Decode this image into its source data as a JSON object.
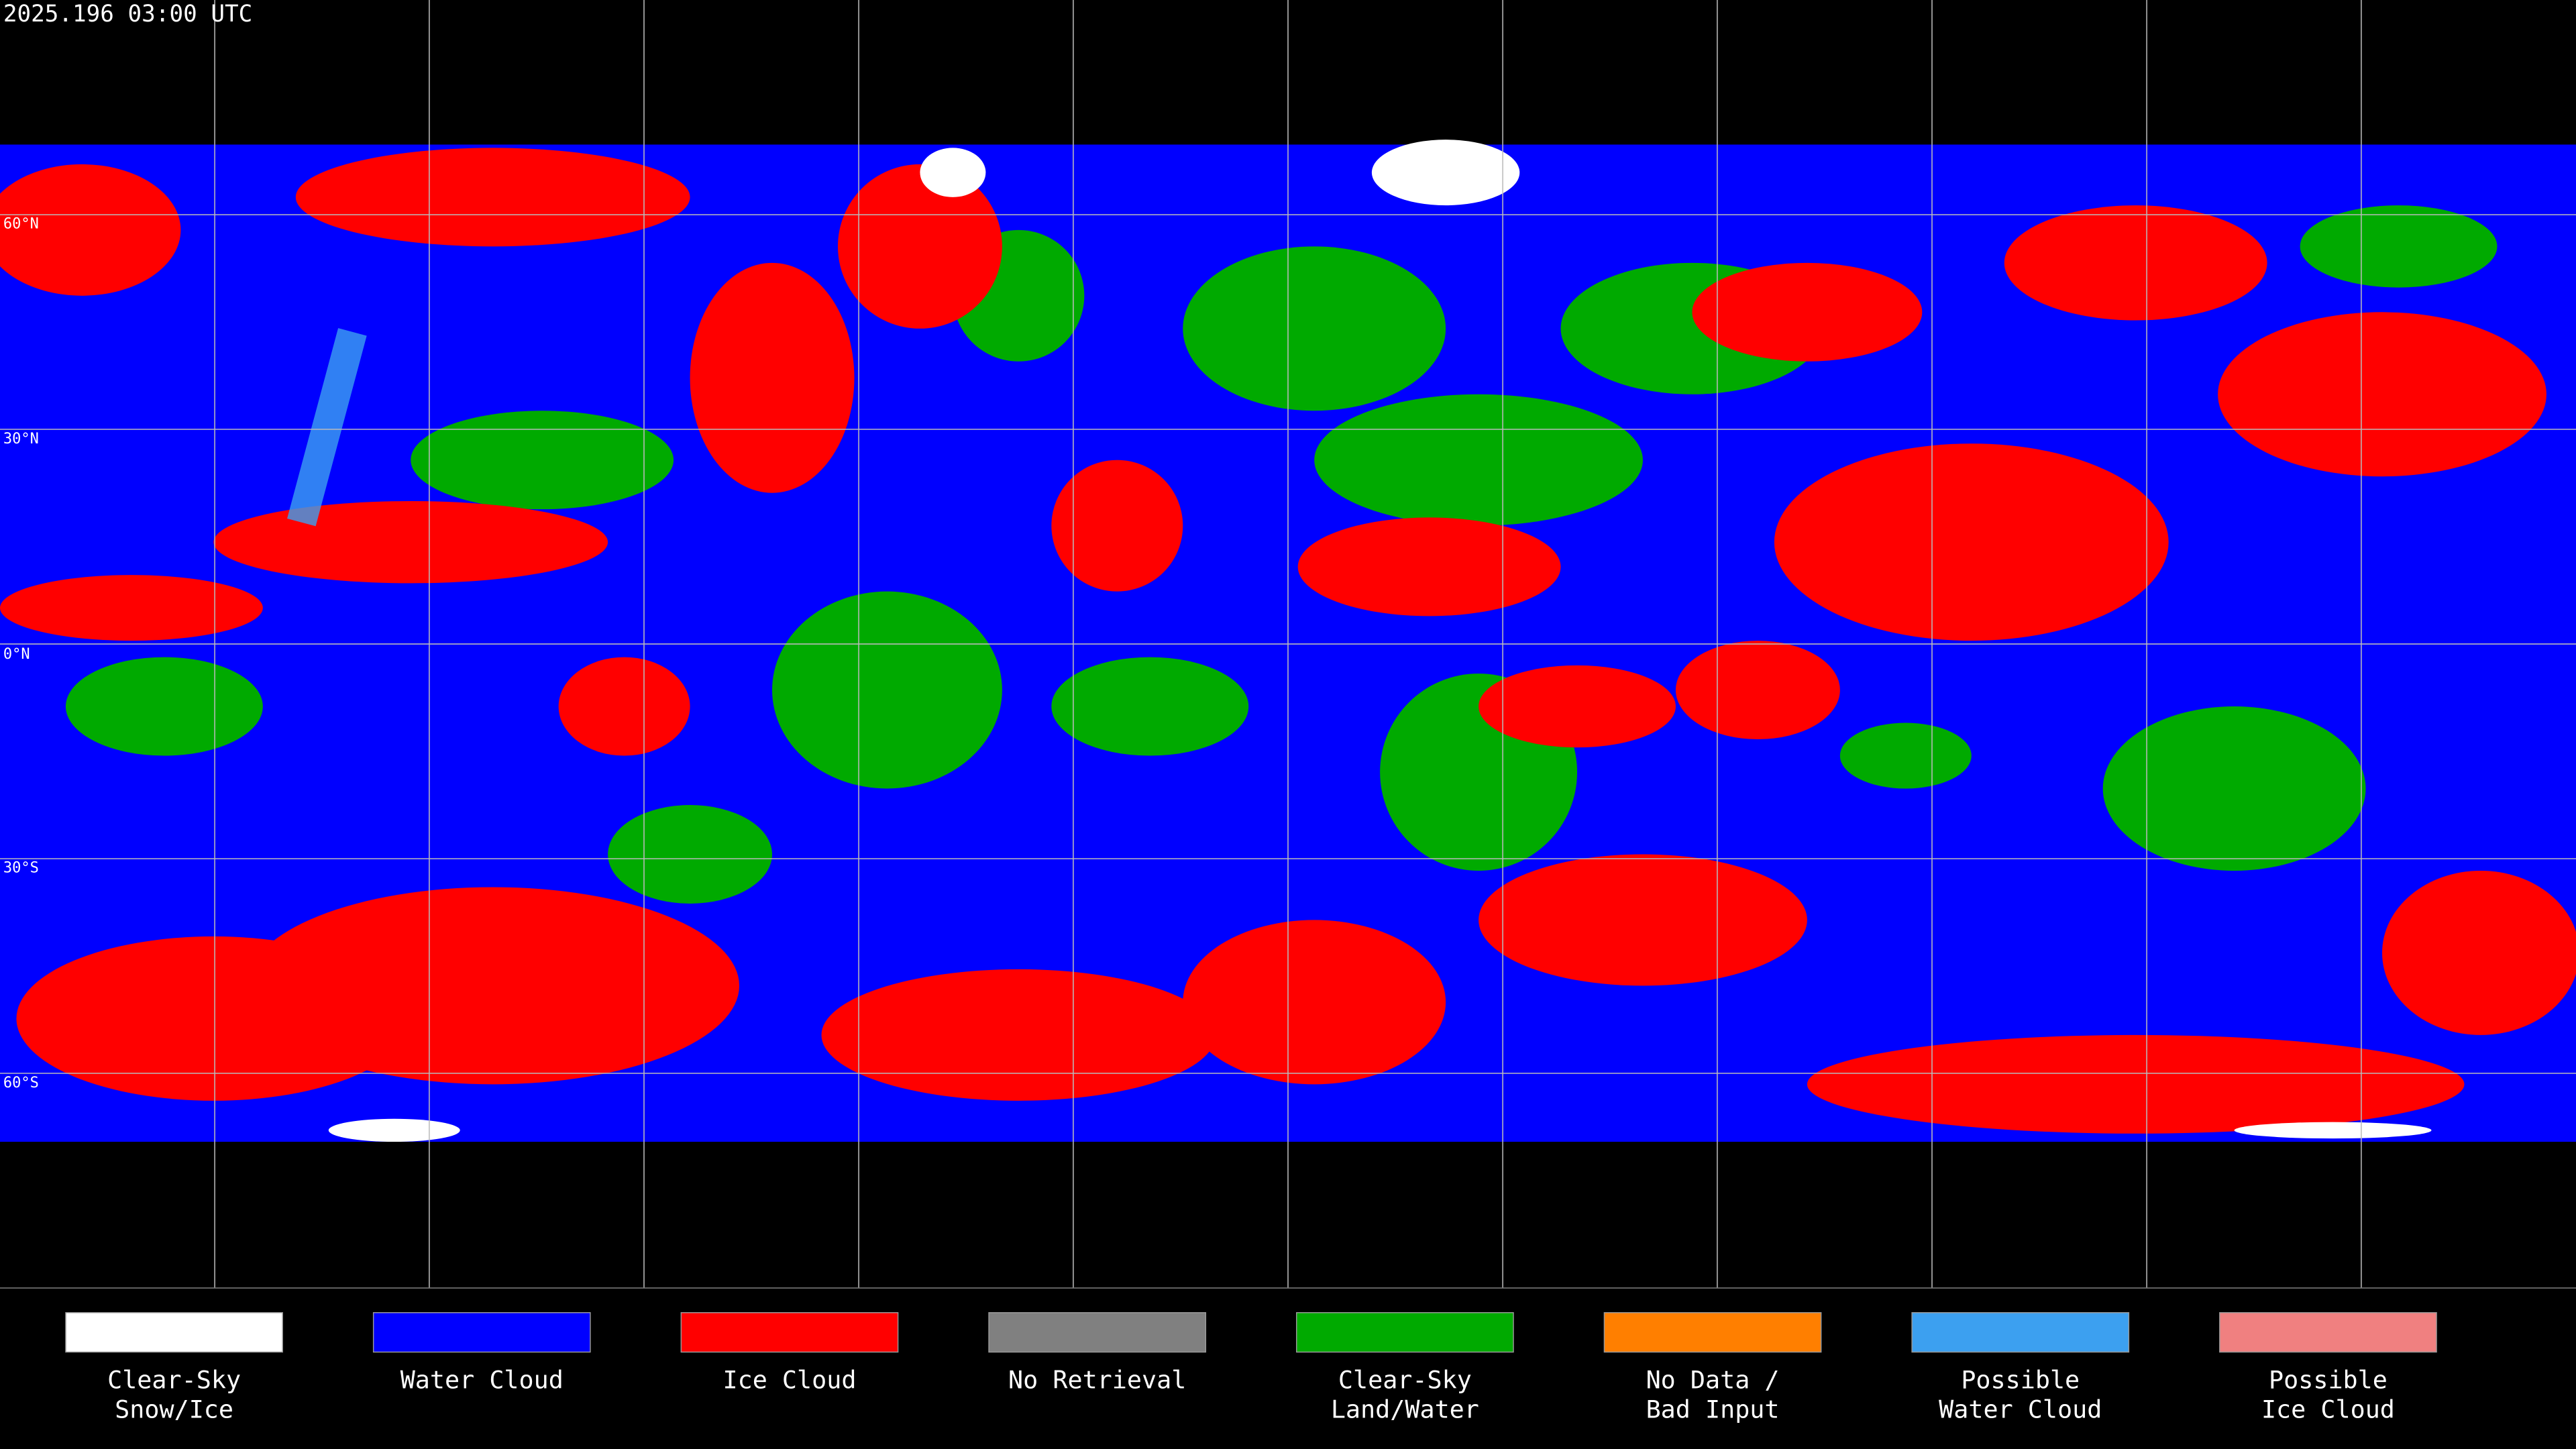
{
  "header": {
    "title": "2025.196 03:00 UTC"
  },
  "lat_labels": [
    "60°N",
    "30°N",
    "0°N",
    "30°S",
    "60°S"
  ],
  "legend": {
    "items": [
      {
        "lines": [
          "Clear-Sky",
          "Snow/Ice"
        ],
        "color": "#ffffff"
      },
      {
        "lines": [
          "Water Cloud"
        ],
        "color": "#0000ff"
      },
      {
        "lines": [
          "Ice Cloud"
        ],
        "color": "#ff0000"
      },
      {
        "lines": [
          "No Retrieval"
        ],
        "color": "#808080"
      },
      {
        "lines": [
          "Clear-Sky",
          "Land/Water"
        ],
        "color": "#00aa00"
      },
      {
        "lines": [
          "No Data /",
          "Bad Input"
        ],
        "color": "#ff7f00"
      },
      {
        "lines": [
          "Possible",
          "Water Cloud"
        ],
        "color": "#3ca0f0"
      },
      {
        "lines": [
          "Possible",
          "Ice Cloud"
        ],
        "color": "#f08080"
      }
    ]
  }
}
